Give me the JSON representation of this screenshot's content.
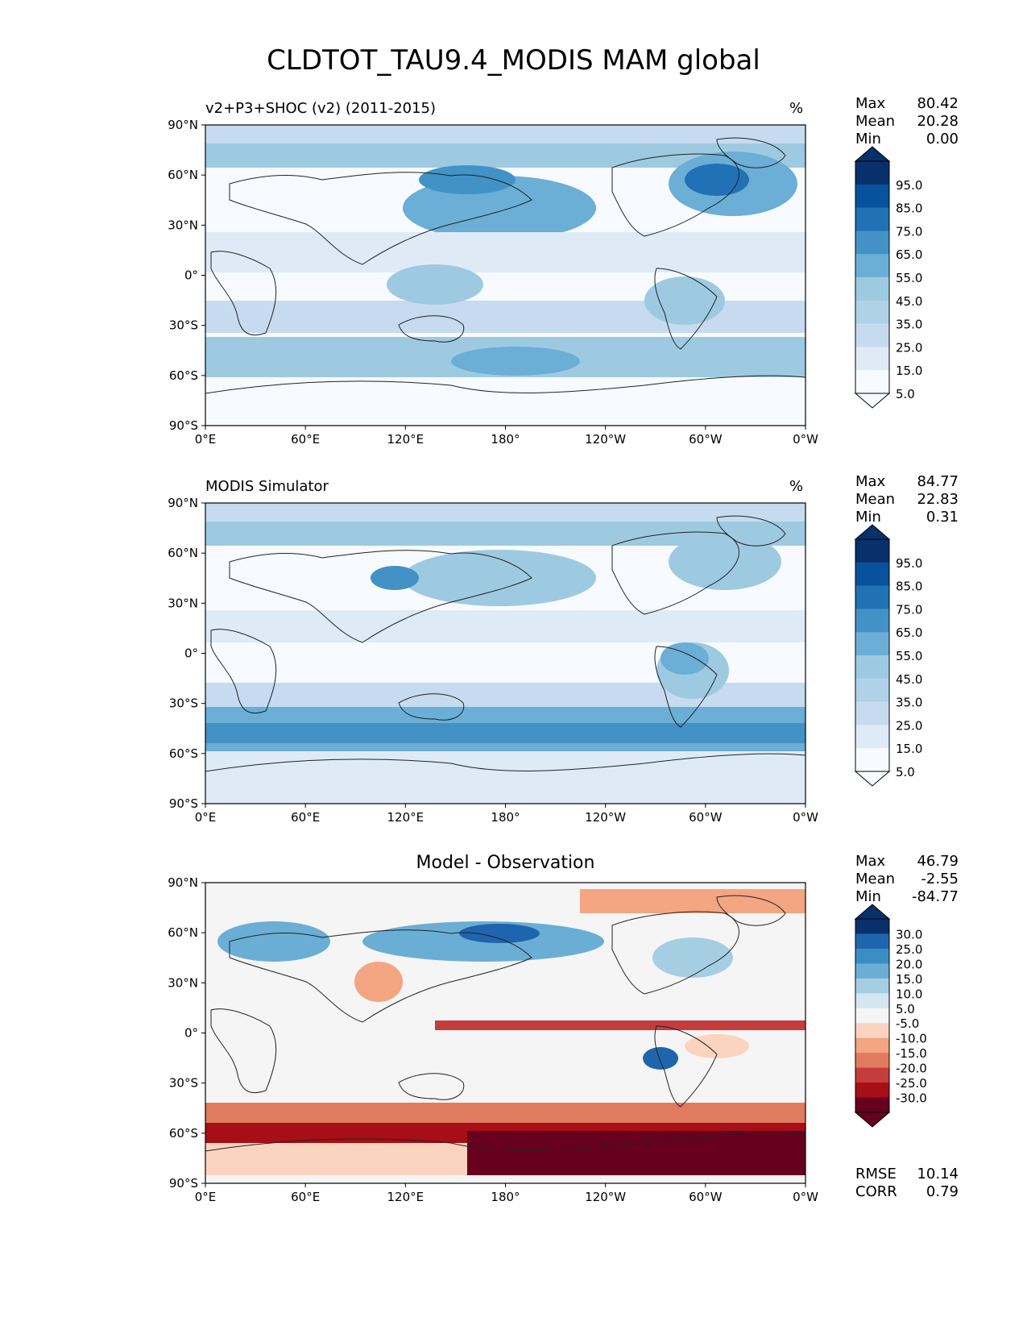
{
  "title": "CLDTOT_TAU9.4_MODIS MAM global",
  "axis_ticks": {
    "lat": [
      "90°N",
      "60°N",
      "30°N",
      "0°",
      "30°S",
      "60°S",
      "90°S"
    ],
    "lon": [
      "0°E",
      "60°E",
      "120°E",
      "180°",
      "120°W",
      "60°W",
      "0°W"
    ]
  },
  "panels": [
    {
      "subtitle": "v2+P3+SHOC (v2) (2011-2015)",
      "unit": "%",
      "stats": {
        "max_label": "Max",
        "max": "80.42",
        "mean_label": "Mean",
        "mean": "20.28",
        "min_label": "Min",
        "min": "0.00"
      },
      "colorbar_labels": [
        "95.0",
        "85.0",
        "75.0",
        "65.0",
        "55.0",
        "45.0",
        "35.0",
        "25.0",
        "15.0",
        "5.0"
      ]
    },
    {
      "subtitle": "MODIS Simulator",
      "unit": "%",
      "stats": {
        "max_label": "Max",
        "max": "84.77",
        "mean_label": "Mean",
        "mean": "22.83",
        "min_label": "Min",
        "min": "0.31"
      },
      "colorbar_labels": [
        "95.0",
        "85.0",
        "75.0",
        "65.0",
        "55.0",
        "45.0",
        "35.0",
        "25.0",
        "15.0",
        "5.0"
      ]
    },
    {
      "subtitle": "Model - Observation",
      "stats": {
        "max_label": "Max",
        "max": "46.79",
        "mean_label": "Mean",
        "mean": "-2.55",
        "min_label": "Min",
        "min": "-84.77"
      },
      "colorbar_labels": [
        "30.0",
        "25.0",
        "20.0",
        "15.0",
        "10.0",
        "5.0",
        "-5.0",
        "-10.0",
        "-15.0",
        "-20.0",
        "-25.0",
        "-30.0"
      ],
      "metrics": {
        "rmse_label": "RMSE",
        "rmse": "10.14",
        "corr_label": "CORR",
        "corr": "0.79"
      }
    }
  ],
  "colors": {
    "blues": [
      "#f7fbff",
      "#deebf7",
      "#c6dbef",
      "#b0d2e8",
      "#9ecae1",
      "#6baed6",
      "#4292c6",
      "#2171b5",
      "#08519c",
      "#08306b"
    ],
    "diff": [
      "#67001f",
      "#a50f15",
      "#c43c3c",
      "#e07b5f",
      "#f4a582",
      "#fbd4c0",
      "#f5f5f5",
      "#d4e6f1",
      "#a6cee3",
      "#6aaed6",
      "#3c8dc4",
      "#1f65ad",
      "#08306b"
    ]
  }
}
